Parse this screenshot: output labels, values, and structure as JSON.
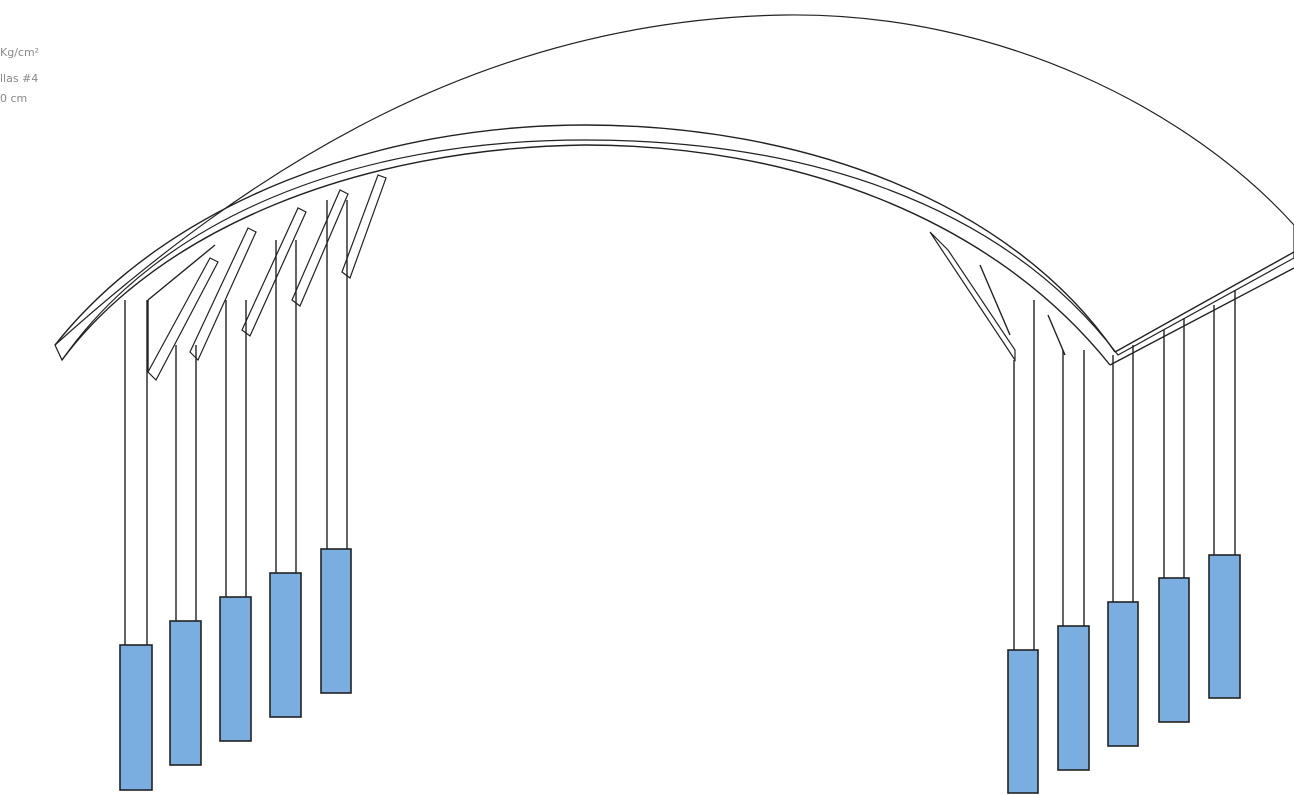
{
  "notes": {
    "lines": [
      "Kg/cm²",
      "llas #4",
      "0 cm"
    ]
  }
}
